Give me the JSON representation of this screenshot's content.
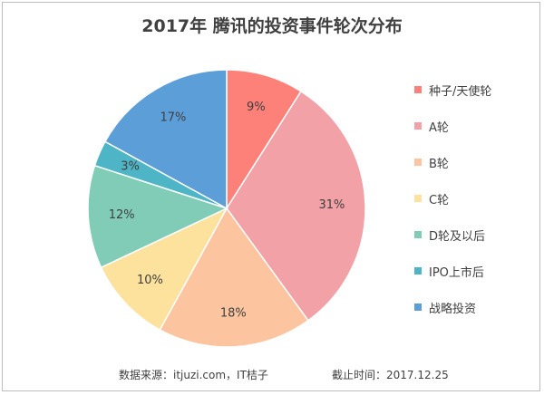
{
  "chart_data": {
    "type": "pie",
    "title": "2017年 腾讯的投资事件轮次分布",
    "legend_position": "right",
    "start_angle_deg": 0,
    "direction": "clockwise",
    "slices": [
      {
        "label": "种子/天使轮",
        "value": 9,
        "display": "9%",
        "color": "#fd8079"
      },
      {
        "label": "A轮",
        "value": 31,
        "display": "31%",
        "color": "#f2a1a6"
      },
      {
        "label": "B轮",
        "value": 18,
        "display": "18%",
        "color": "#fcc59f"
      },
      {
        "label": "C轮",
        "value": 10,
        "display": "10%",
        "color": "#fde29e"
      },
      {
        "label": "D轮及以后",
        "value": 12,
        "display": "12%",
        "color": "#80ccb6"
      },
      {
        "label": "IPO上市后",
        "value": 3,
        "display": "3%",
        "color": "#4eb5c6"
      },
      {
        "label": "战略投资",
        "value": 17,
        "display": "17%",
        "color": "#5c9ed8"
      }
    ]
  },
  "footer": {
    "source": "数据来源：itjuzi.com，IT桔子",
    "date": "截止时间：2017.12.25"
  }
}
